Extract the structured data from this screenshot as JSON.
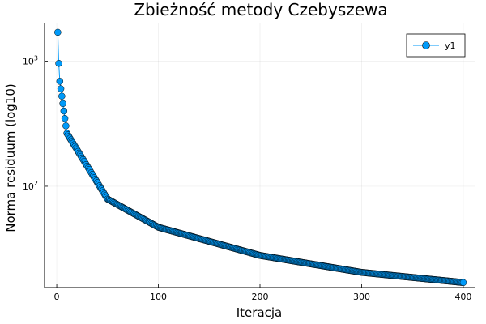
{
  "chart_data": {
    "type": "line",
    "title": "Zbieżność metody Czebyszewa",
    "xlabel": "Iteracja",
    "ylabel": "Norma residuum (log10)",
    "xlim": [
      -12,
      412
    ],
    "ylim": [
      15.5,
      2000
    ],
    "yscale": "log10",
    "grid": true,
    "legend_position": "top-right",
    "x_ticks": [
      0,
      100,
      200,
      300,
      400
    ],
    "y_ticks": [
      100,
      1000
    ],
    "y_tick_labels": [
      {
        "base": "10",
        "exp": "2"
      },
      {
        "base": "10",
        "exp": "3"
      }
    ],
    "series": [
      {
        "name": "y1",
        "color": "#009af9",
        "marker": "circle",
        "x_start": 1,
        "x_end": 400,
        "model": "y = a / (x + b)",
        "anchors": [
          {
            "x": 1,
            "y": 1700
          },
          {
            "x": 2,
            "y": 960
          },
          {
            "x": 3,
            "y": 690
          },
          {
            "x": 10,
            "y": 265
          },
          {
            "x": 50,
            "y": 79
          },
          {
            "x": 100,
            "y": 47
          },
          {
            "x": 200,
            "y": 28
          },
          {
            "x": 300,
            "y": 20.5
          },
          {
            "x": 400,
            "y": 17
          }
        ]
      }
    ]
  }
}
